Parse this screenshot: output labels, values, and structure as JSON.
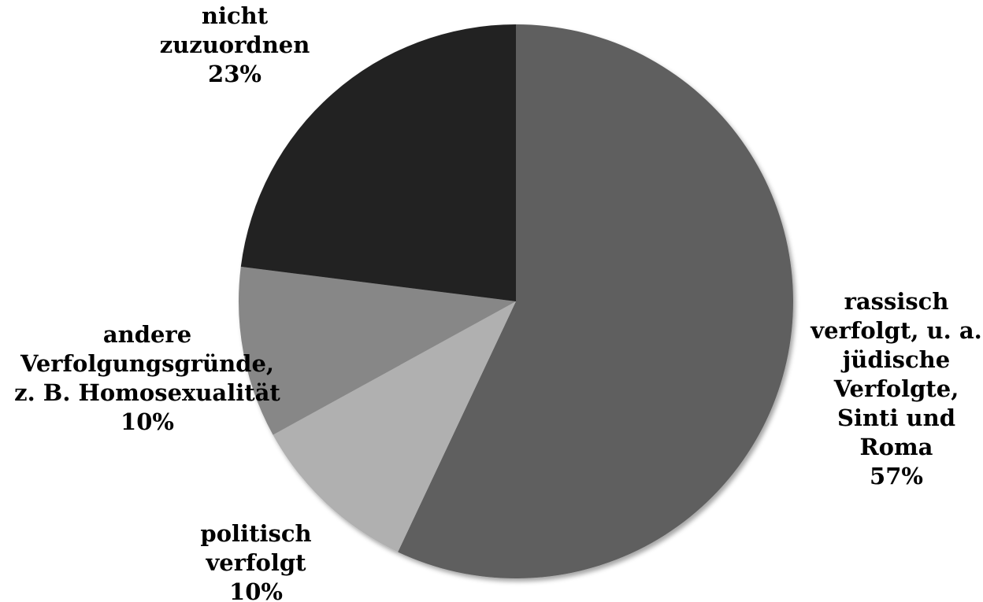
{
  "chart_data": {
    "type": "pie",
    "title": "",
    "unit": "%",
    "slices": [
      {
        "label_lines": [
          "rassisch",
          "verfolgt, u. a.",
          "jüdische",
          "Verfolgte,",
          "Sinti und",
          "Roma"
        ],
        "value": 57,
        "value_label": "57%",
        "color": "#5f5f5f"
      },
      {
        "label_lines": [
          "politisch",
          "verfolgt"
        ],
        "value": 10,
        "value_label": "10%",
        "color": "#b0b0b0"
      },
      {
        "label_lines": [
          "andere",
          "Verfolgungsgründe,",
          "z. B. Homosexualität"
        ],
        "value": 10,
        "value_label": "10%",
        "color": "#878787"
      },
      {
        "label_lines": [
          "nicht",
          "zuzuordnen"
        ],
        "value": 23,
        "value_label": "23%",
        "color": "#212121"
      }
    ],
    "start": "12 o'clock",
    "direction": "clockwise",
    "legend": "none"
  }
}
